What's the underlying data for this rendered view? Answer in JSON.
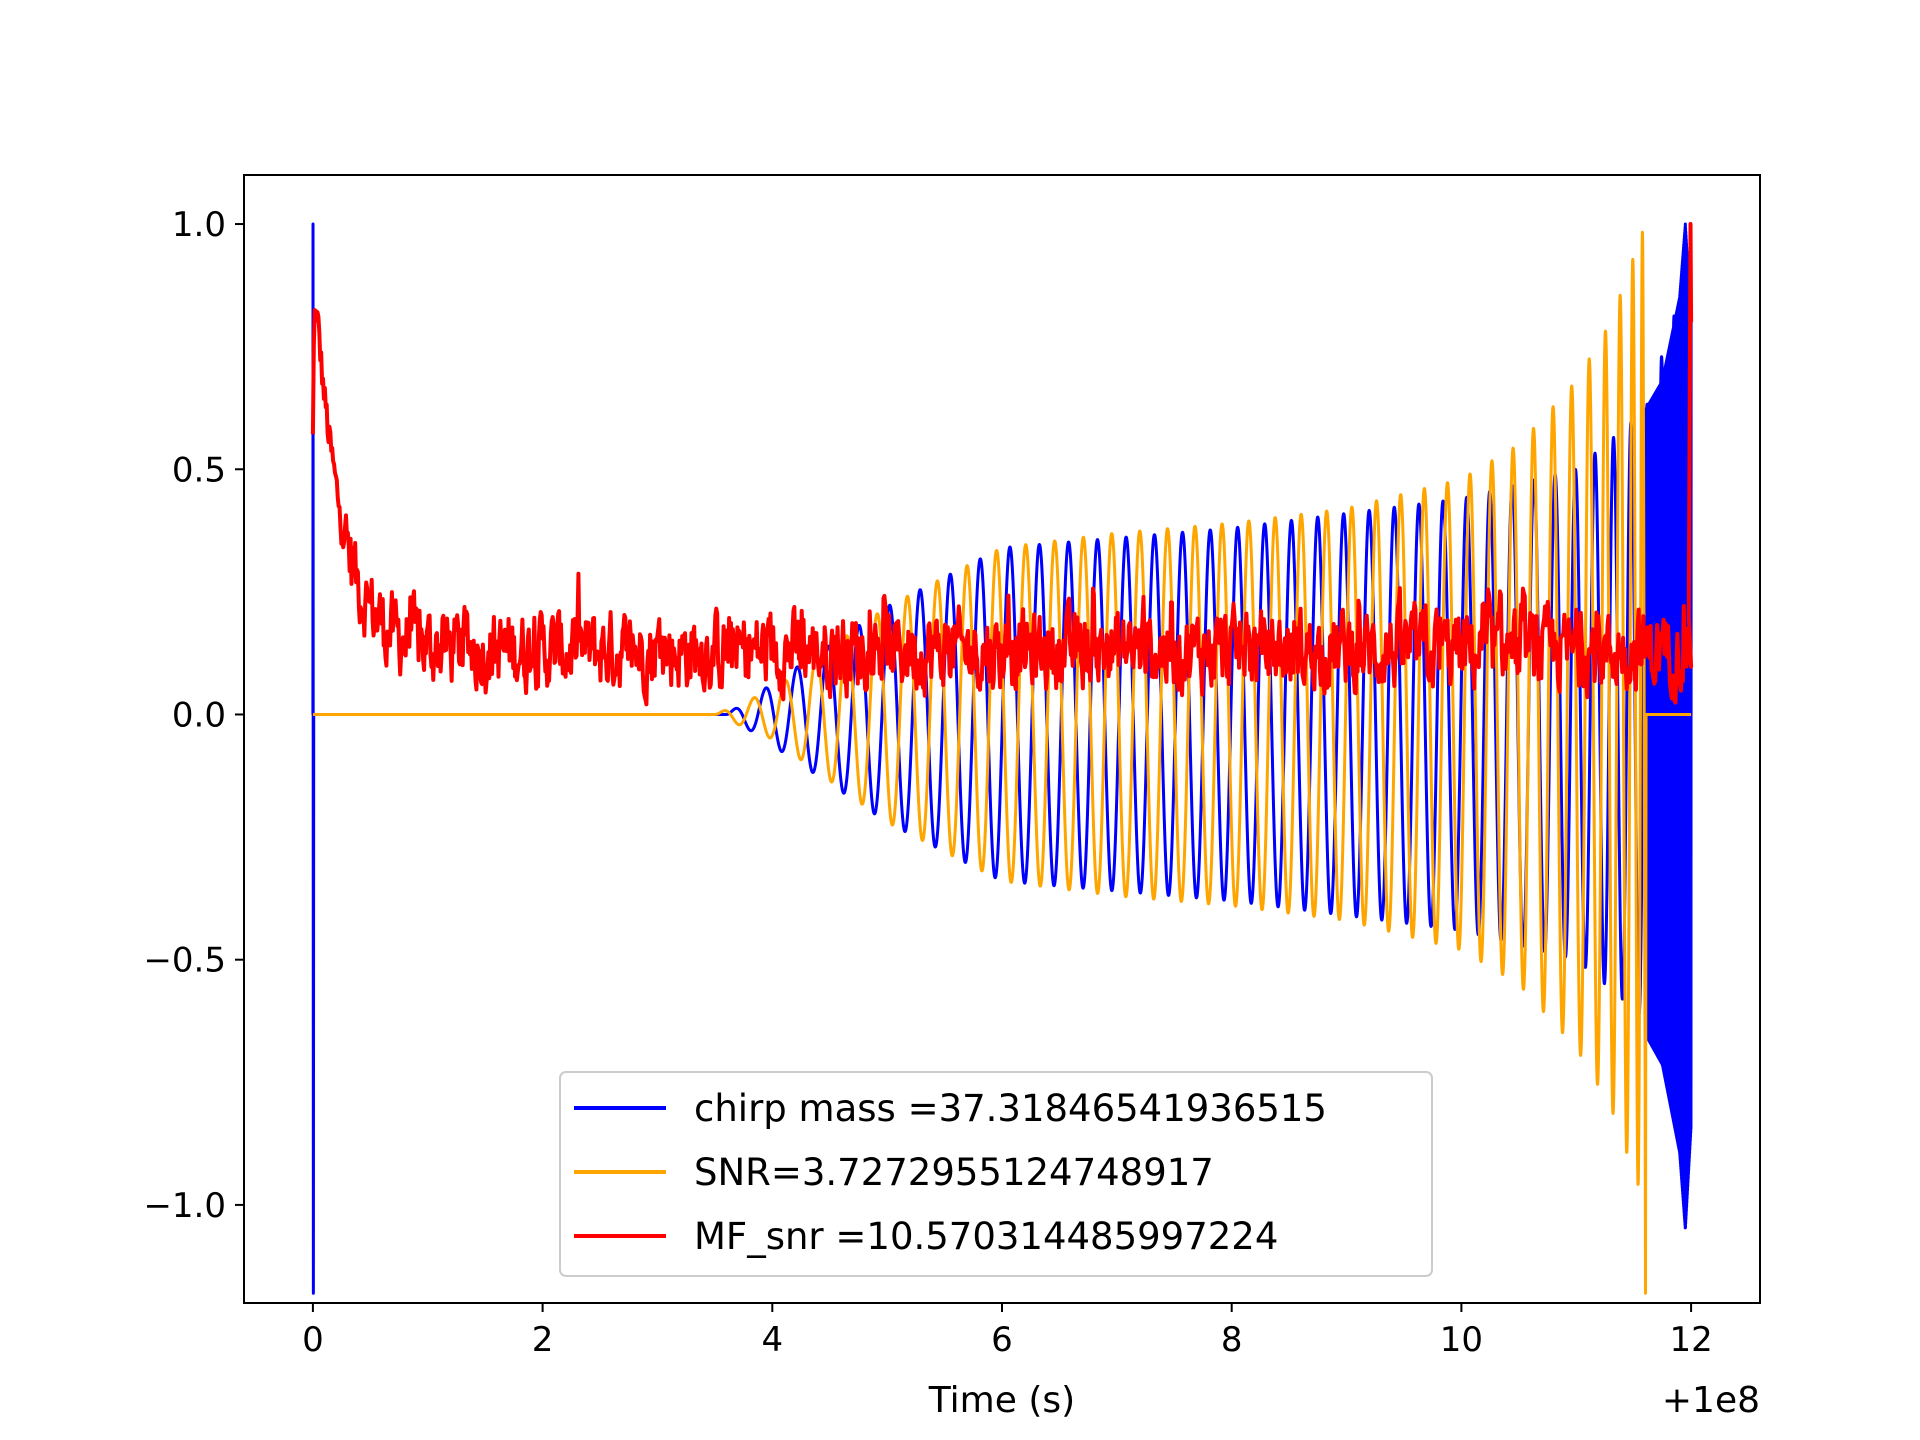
{
  "chart_data": {
    "type": "line",
    "title": "",
    "xlabel": "Time (s)",
    "ylabel": "",
    "x_offset_label": "+1e8",
    "xlim": [
      -0.6,
      12.6
    ],
    "ylim": [
      -1.2,
      1.1
    ],
    "xticks": [
      0,
      2,
      4,
      6,
      8,
      10,
      12
    ],
    "xtick_labels": [
      "0",
      "2",
      "4",
      "6",
      "8",
      "10",
      "12"
    ],
    "yticks": [
      1.0,
      0.5,
      0.0,
      -0.5,
      -1.0
    ],
    "ytick_labels": [
      "1.0",
      "0.5",
      "0.0",
      "−0.5",
      "−1.0"
    ],
    "grid": false,
    "legend_position": "lower-center",
    "series": [
      {
        "name": "chirp mass =37.31846541936515",
        "color": "#0000ff",
        "kind": "chirp",
        "x_start": 0.0,
        "x_end": 12.0,
        "onset": 3.6,
        "merger": 11.95,
        "initial_spike": [
          1.0,
          -1.18
        ],
        "envelope": [
          [
            3.6,
            0.0
          ],
          [
            5.0,
            0.22
          ],
          [
            6.0,
            0.34
          ],
          [
            7.0,
            0.36
          ],
          [
            8.0,
            0.38
          ],
          [
            9.0,
            0.41
          ],
          [
            10.0,
            0.44
          ],
          [
            11.0,
            0.5
          ],
          [
            11.6,
            0.62
          ],
          [
            11.9,
            0.85
          ],
          [
            11.95,
            1.0
          ]
        ],
        "post_merger": [
          [
            12.0,
            0.8
          ]
        ]
      },
      {
        "name": "SNR=3.7272955124748917",
        "color": "#ffa500",
        "kind": "chirp",
        "x_start": 0.0,
        "x_end": 12.0,
        "onset": 3.5,
        "merger": 11.6,
        "envelope": [
          [
            3.5,
            0.0
          ],
          [
            4.0,
            0.05
          ],
          [
            5.0,
            0.22
          ],
          [
            6.0,
            0.34
          ],
          [
            7.0,
            0.37
          ],
          [
            8.0,
            0.39
          ],
          [
            9.0,
            0.42
          ],
          [
            10.0,
            0.48
          ],
          [
            10.5,
            0.55
          ],
          [
            11.0,
            0.68
          ],
          [
            11.3,
            0.8
          ],
          [
            11.6,
            1.0
          ]
        ],
        "min_at_merger": -1.18
      },
      {
        "name": "MF_snr =10.570314485997224",
        "color": "#ff0000",
        "kind": "noise",
        "x_start": 0.0,
        "x_end": 12.0,
        "start_value": 0.91,
        "decay_to": 0.13,
        "decay_time": 0.5,
        "noise_amplitude": 0.12,
        "end_spike": 1.0,
        "min_value": 0.0
      }
    ]
  }
}
